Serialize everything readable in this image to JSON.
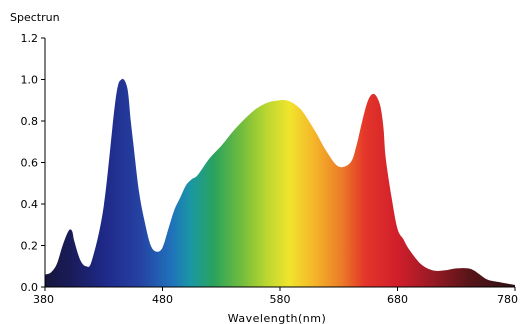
{
  "chart_data": {
    "type": "area",
    "title": "",
    "xlabel": "Wavelength(nm)",
    "ylabel": "Spectrun",
    "xlim": [
      380,
      780
    ],
    "ylim": [
      0,
      1.2
    ],
    "xticks": [
      380,
      480,
      580,
      680,
      780
    ],
    "xtick_labels": [
      "380",
      "480",
      "580",
      "680",
      "780"
    ],
    "yticks": [
      0,
      0.2,
      0.4,
      0.6,
      0.8,
      1.0,
      1.2
    ],
    "ytick_labels": [
      "0.0",
      "0.2",
      "0.4",
      "0.6",
      "0.8",
      "1.0",
      "1.2"
    ],
    "grid": false,
    "legend": "none",
    "fill": "visible-spectrum gradient",
    "series": [
      {
        "x": [
          380,
          385,
          390,
          395,
          400,
          403,
          405,
          410,
          415,
          420,
          430,
          440,
          445,
          450,
          453,
          455,
          460,
          465,
          470,
          475,
          480,
          485,
          490,
          495,
          500,
          505,
          510,
          520,
          530,
          540,
          550,
          560,
          570,
          580,
          585,
          590,
          595,
          600,
          610,
          620,
          630,
          640,
          645,
          650,
          655,
          660,
          665,
          668,
          670,
          675,
          680,
          685,
          690,
          700,
          710,
          720,
          730,
          740,
          745,
          750,
          755,
          760,
          770,
          780
        ],
        "y": [
          0.06,
          0.07,
          0.11,
          0.2,
          0.27,
          0.27,
          0.22,
          0.13,
          0.1,
          0.13,
          0.39,
          0.9,
          1.0,
          0.96,
          0.8,
          0.7,
          0.46,
          0.31,
          0.2,
          0.17,
          0.19,
          0.28,
          0.37,
          0.43,
          0.49,
          0.52,
          0.54,
          0.62,
          0.68,
          0.75,
          0.81,
          0.86,
          0.89,
          0.9,
          0.9,
          0.89,
          0.87,
          0.84,
          0.75,
          0.65,
          0.58,
          0.6,
          0.68,
          0.8,
          0.9,
          0.93,
          0.88,
          0.77,
          0.62,
          0.43,
          0.28,
          0.23,
          0.18,
          0.11,
          0.08,
          0.08,
          0.09,
          0.09,
          0.08,
          0.06,
          0.04,
          0.03,
          0.02,
          0.01
        ]
      }
    ]
  }
}
